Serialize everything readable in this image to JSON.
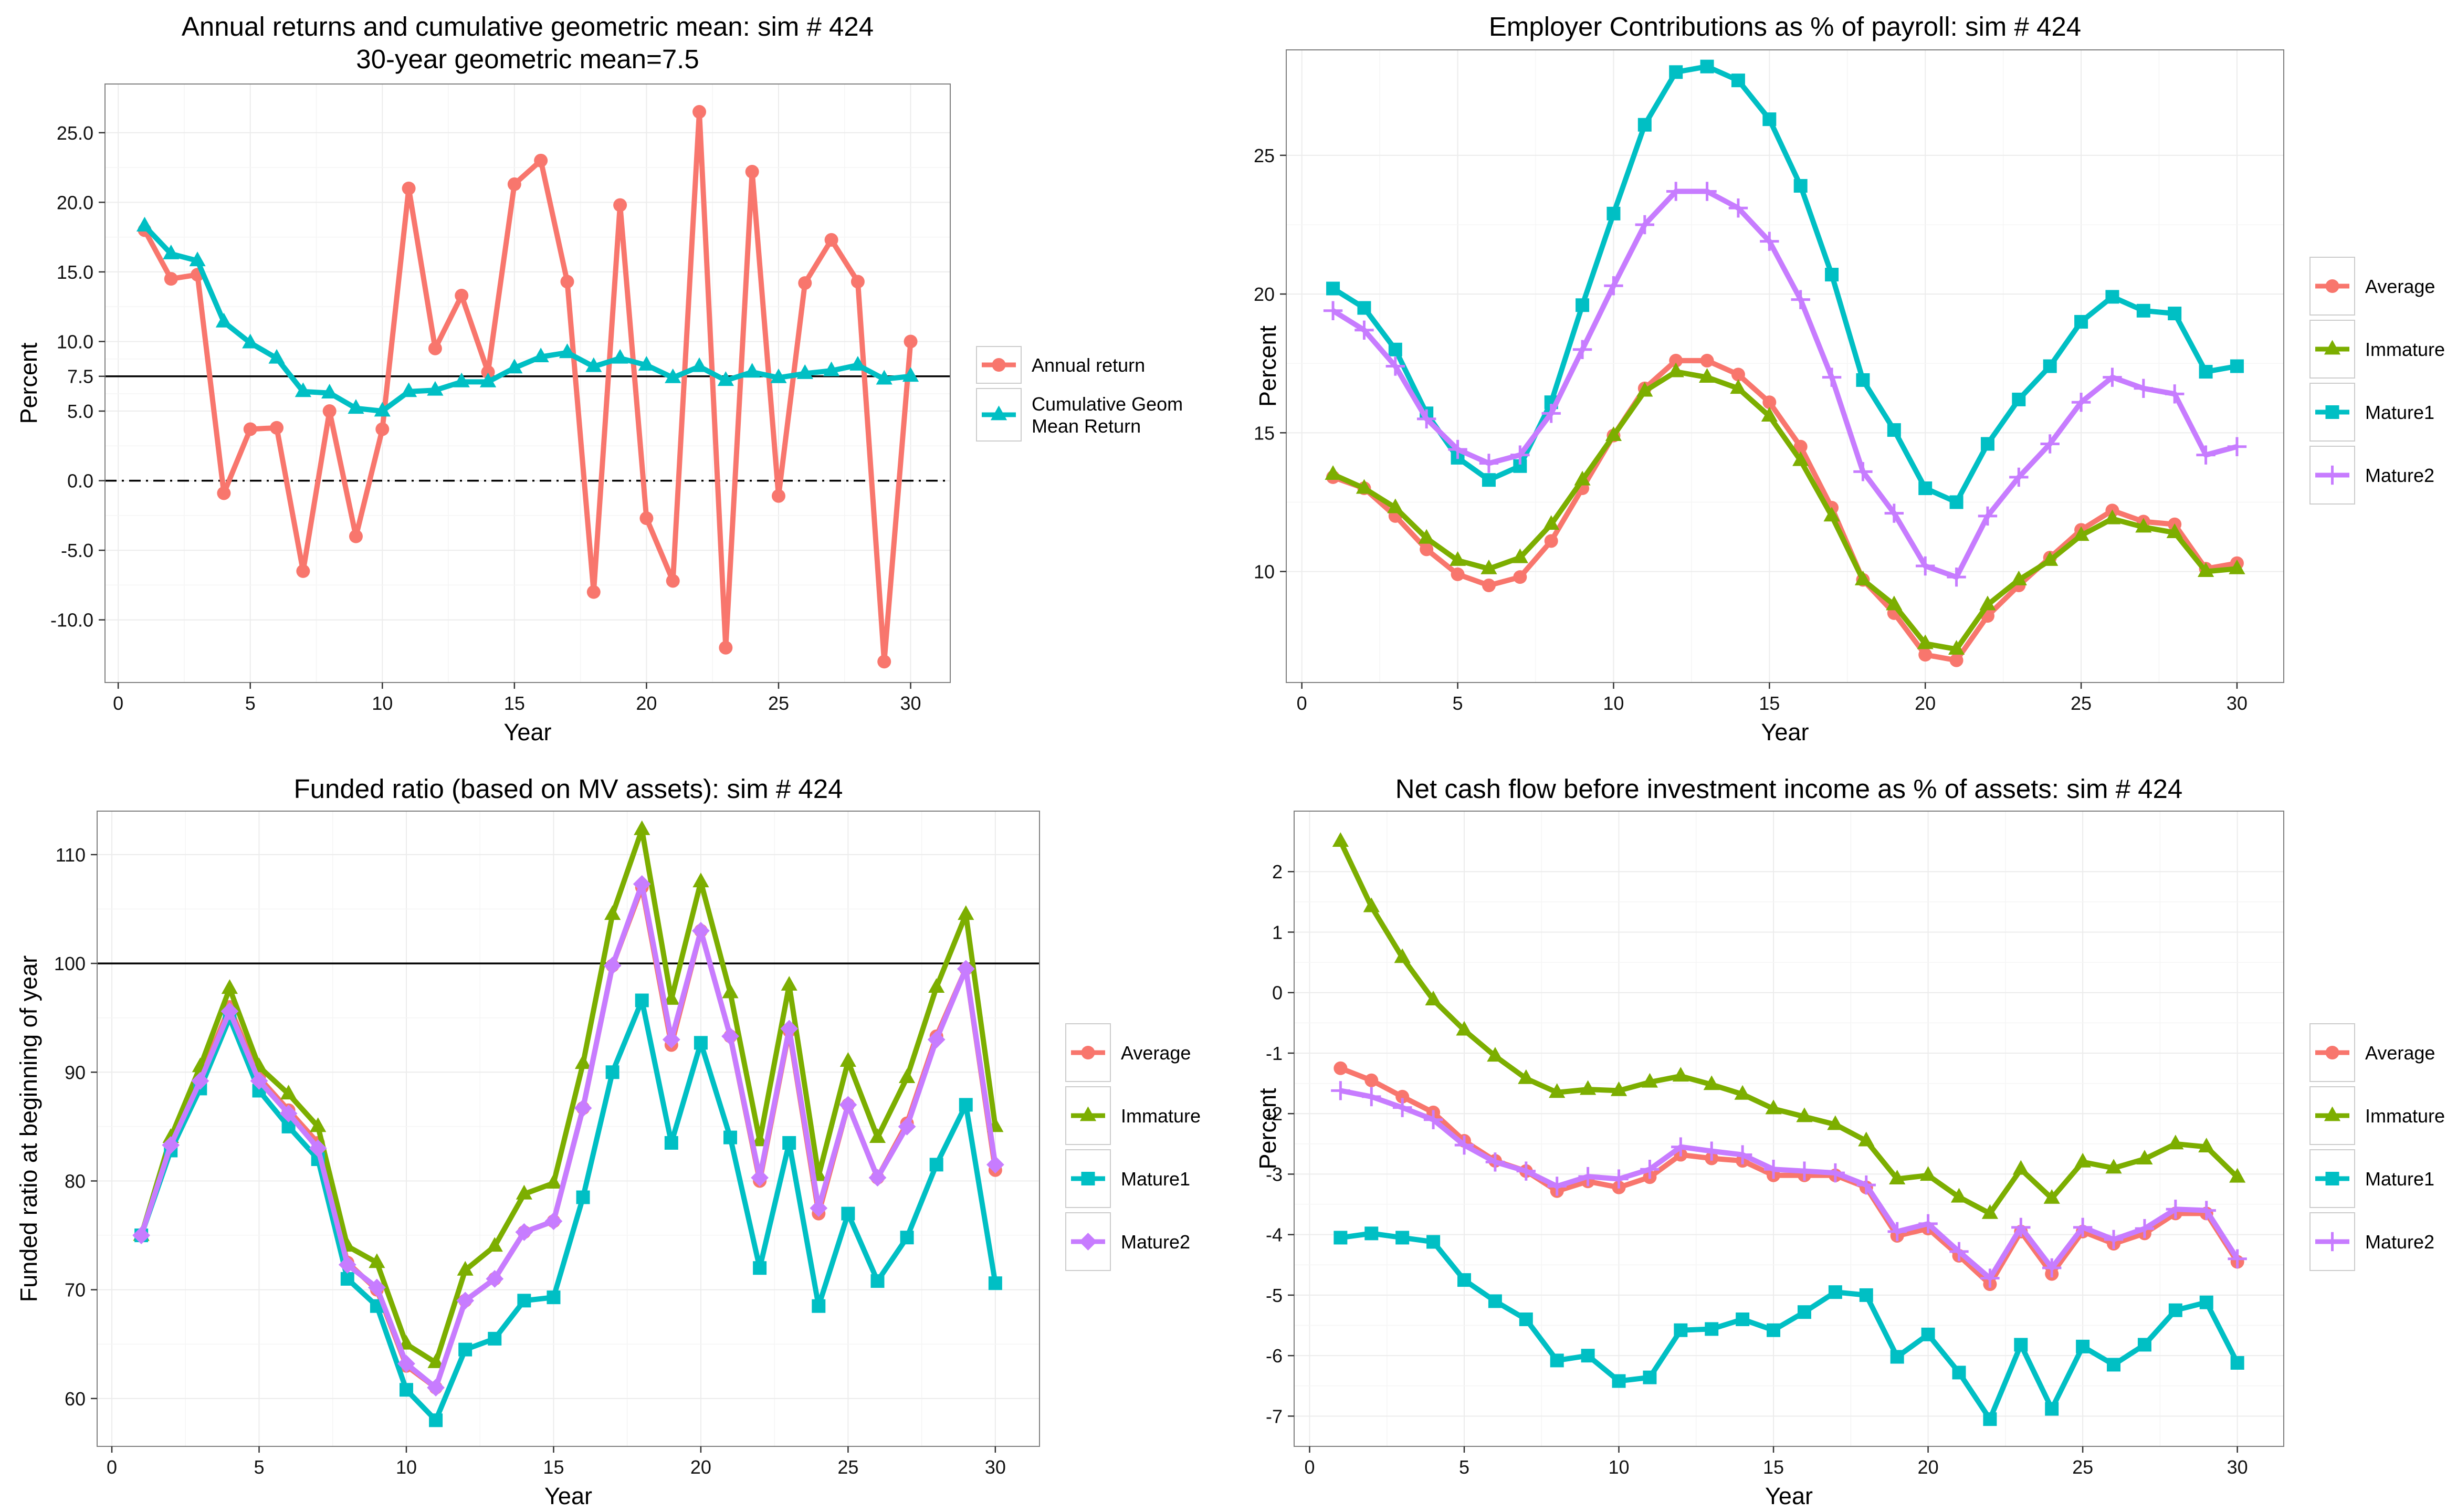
{
  "chart_data": [
    {
      "type": "line",
      "title": [
        "Annual returns and cumulative geometric mean: sim # 424",
        "30-year geometric mean=7.5"
      ],
      "xlabel": "Year",
      "ylabel": "Percent",
      "xlim": [
        -0.5,
        31.5
      ],
      "ylim": [
        -14.5,
        28.5
      ],
      "xticks": [
        0,
        5,
        10,
        15,
        20,
        25,
        30
      ],
      "yticks": [
        -10,
        -5,
        0,
        5,
        7.5,
        10,
        15,
        20,
        25
      ],
      "ytick_labels": [
        "-10.0",
        "-5.0",
        "0.0",
        "5.0",
        "7.5",
        "10.0",
        "15.0",
        "20.0",
        "25.0"
      ],
      "hlines": [
        {
          "y": 7.5,
          "style": "solid"
        },
        {
          "y": 0,
          "style": "dashdot"
        }
      ],
      "x": [
        1,
        2,
        3,
        4,
        5,
        6,
        7,
        8,
        9,
        10,
        11,
        12,
        13,
        14,
        15,
        16,
        17,
        18,
        19,
        20,
        21,
        22,
        23,
        24,
        25,
        26,
        27,
        28,
        29,
        30
      ],
      "series": [
        {
          "name": "Annual return",
          "color": "#F8766D",
          "marker": "circle",
          "values": [
            18.0,
            14.5,
            14.8,
            -0.9,
            3.7,
            3.8,
            -6.5,
            5.0,
            -4.0,
            3.7,
            21.0,
            9.5,
            13.3,
            7.8,
            21.3,
            23.0,
            14.3,
            -8.0,
            19.8,
            -2.7,
            -7.2,
            26.5,
            -12.0,
            22.2,
            -1.1,
            14.2,
            17.3,
            14.3,
            -13.0,
            10.0
          ]
        },
        {
          "name": "Cumulative Geom Mean Return",
          "color": "#00BFC4",
          "marker": "triangle",
          "values": [
            18.3,
            16.3,
            15.8,
            11.4,
            9.9,
            8.8,
            6.4,
            6.3,
            5.2,
            5.0,
            6.4,
            6.5,
            7.1,
            7.1,
            8.1,
            8.9,
            9.2,
            8.2,
            8.8,
            8.3,
            7.4,
            8.2,
            7.2,
            7.8,
            7.4,
            7.7,
            7.9,
            8.3,
            7.3,
            7.5
          ]
        }
      ],
      "legend": [
        "Annual return",
        "Cumulative Geom\nMean Return"
      ],
      "legend_position": "right"
    },
    {
      "type": "line",
      "title": [
        "Employer Contributions as % of payroll: sim # 424"
      ],
      "xlabel": "Year",
      "ylabel": "Percent",
      "xlim": [
        -0.5,
        31.5
      ],
      "ylim": [
        6.0,
        28.8
      ],
      "xticks": [
        0,
        5,
        10,
        15,
        20,
        25,
        30
      ],
      "yticks": [
        10,
        15,
        20,
        25
      ],
      "x": [
        1,
        2,
        3,
        4,
        5,
        6,
        7,
        8,
        9,
        10,
        11,
        12,
        13,
        14,
        15,
        16,
        17,
        18,
        19,
        20,
        21,
        22,
        23,
        24,
        25,
        26,
        27,
        28,
        29,
        30
      ],
      "series": [
        {
          "name": "Average",
          "color": "#F8766D",
          "marker": "circle",
          "values": [
            13.4,
            13.0,
            12.0,
            10.8,
            9.9,
            9.5,
            9.8,
            11.1,
            13.0,
            14.9,
            16.6,
            17.6,
            17.6,
            17.1,
            16.1,
            14.5,
            12.3,
            9.7,
            8.5,
            7.0,
            6.8,
            8.4,
            9.5,
            10.5,
            11.5,
            12.2,
            11.8,
            11.7,
            10.1,
            10.3
          ]
        },
        {
          "name": "Immature",
          "color": "#7CAE00",
          "marker": "triangle",
          "values": [
            13.5,
            13.0,
            12.3,
            11.2,
            10.4,
            10.1,
            10.5,
            11.7,
            13.3,
            14.9,
            16.5,
            17.2,
            17.0,
            16.6,
            15.6,
            14.0,
            12.0,
            9.7,
            8.8,
            7.4,
            7.2,
            8.8,
            9.7,
            10.4,
            11.3,
            11.9,
            11.6,
            11.4,
            10.0,
            10.1
          ]
        },
        {
          "name": "Mature1",
          "color": "#00BFC4",
          "marker": "square",
          "values": [
            20.2,
            19.5,
            18.0,
            15.7,
            14.1,
            13.3,
            13.8,
            16.1,
            19.6,
            22.9,
            26.1,
            28.0,
            28.2,
            27.7,
            26.3,
            23.9,
            20.7,
            16.9,
            15.1,
            13.0,
            12.5,
            14.6,
            16.2,
            17.4,
            19.0,
            19.9,
            19.4,
            19.3,
            17.2,
            17.4
          ]
        },
        {
          "name": "Mature2",
          "color": "#C77CFF",
          "marker": "plus",
          "values": [
            19.4,
            18.7,
            17.4,
            15.5,
            14.4,
            13.9,
            14.2,
            15.7,
            18.0,
            20.3,
            22.5,
            23.7,
            23.7,
            23.1,
            21.9,
            19.8,
            17.0,
            13.6,
            12.1,
            10.2,
            9.8,
            12.0,
            13.4,
            14.6,
            16.1,
            17.0,
            16.6,
            16.4,
            14.2,
            14.5
          ]
        }
      ],
      "legend": [
        "Average",
        "Immature",
        "Mature1",
        "Mature2"
      ],
      "legend_position": "right"
    },
    {
      "type": "line",
      "title": [
        "Funded ratio (based on MV assets): sim # 424"
      ],
      "xlabel": "Year",
      "ylabel": "Funded ratio at beginning of year",
      "xlim": [
        -0.5,
        31.5
      ],
      "ylim": [
        55.6,
        114.0
      ],
      "xticks": [
        0,
        5,
        10,
        15,
        20,
        25,
        30
      ],
      "yticks": [
        60,
        70,
        80,
        90,
        100,
        110
      ],
      "hlines": [
        {
          "y": 100,
          "style": "solid"
        }
      ],
      "x": [
        1,
        2,
        3,
        4,
        5,
        6,
        7,
        8,
        9,
        10,
        11,
        12,
        13,
        14,
        15,
        16,
        17,
        18,
        19,
        20,
        21,
        22,
        23,
        24,
        25,
        26,
        27,
        28,
        29,
        30
      ],
      "series": [
        {
          "name": "Average",
          "color": "#F8766D",
          "marker": "circle",
          "values": [
            75.0,
            83.5,
            89.5,
            96.0,
            89.5,
            86.5,
            83.5,
            72.5,
            70.0,
            63.0,
            61.0,
            69.0,
            71.0,
            75.3,
            76.3,
            86.7,
            99.8,
            107.0,
            92.5,
            103.0,
            93.3,
            80.0,
            93.8,
            77.0,
            87.0,
            80.3,
            85.3,
            93.3,
            99.5,
            81.0
          ]
        },
        {
          "name": "Immature",
          "color": "#7CAE00",
          "marker": "triangle",
          "values": [
            75.0,
            84.0,
            90.5,
            97.7,
            90.5,
            88.0,
            85.0,
            74.0,
            72.5,
            65.0,
            63.3,
            71.8,
            74.0,
            78.8,
            79.8,
            90.8,
            104.5,
            112.3,
            96.7,
            107.5,
            97.3,
            83.7,
            98.0,
            80.5,
            91.0,
            84.0,
            89.5,
            97.8,
            104.5,
            85.0
          ]
        },
        {
          "name": "Mature1",
          "color": "#00BFC4",
          "marker": "square",
          "values": [
            75.0,
            82.8,
            88.5,
            95.0,
            88.3,
            85.0,
            82.0,
            71.0,
            68.5,
            60.8,
            58.0,
            64.5,
            65.5,
            69.0,
            69.3,
            78.5,
            90.0,
            96.6,
            83.5,
            92.7,
            84.0,
            72.0,
            83.5,
            68.5,
            77.0,
            70.8,
            74.8,
            81.5,
            87.0,
            70.6
          ]
        },
        {
          "name": "Mature2",
          "color": "#C77CFF",
          "marker": "diamond",
          "values": [
            75.0,
            83.3,
            89.2,
            95.6,
            89.2,
            86.2,
            83.0,
            72.3,
            70.2,
            63.2,
            61.0,
            69.0,
            71.0,
            75.3,
            76.3,
            86.7,
            99.8,
            107.3,
            93.0,
            103.0,
            93.3,
            80.3,
            94.0,
            77.5,
            87.0,
            80.3,
            85.0,
            93.0,
            99.5,
            81.5
          ]
        }
      ],
      "legend": [
        "Average",
        "Immature",
        "Mature1",
        "Mature2"
      ],
      "legend_position": "right"
    },
    {
      "type": "line",
      "title": [
        "Net cash flow before investment income as % of assets: sim # 424"
      ],
      "xlabel": "Year",
      "ylabel": "Percent",
      "xlim": [
        -0.5,
        31.5
      ],
      "ylim": [
        -7.5,
        3.0
      ],
      "xticks": [
        0,
        5,
        10,
        15,
        20,
        25,
        30
      ],
      "yticks": [
        -7,
        -6,
        -5,
        -4,
        -3,
        -2,
        -1,
        0,
        1,
        2
      ],
      "x": [
        1,
        2,
        3,
        4,
        5,
        6,
        7,
        8,
        9,
        10,
        11,
        12,
        13,
        14,
        15,
        16,
        17,
        18,
        19,
        20,
        21,
        22,
        23,
        24,
        25,
        26,
        27,
        28,
        29,
        30
      ],
      "series": [
        {
          "name": "Average",
          "color": "#F8766D",
          "marker": "circle",
          "values": [
            -1.25,
            -1.45,
            -1.72,
            -1.98,
            -2.45,
            -2.78,
            -2.95,
            -3.28,
            -3.12,
            -3.22,
            -3.05,
            -2.68,
            -2.74,
            -2.78,
            -3.02,
            -3.02,
            -3.02,
            -3.22,
            -4.02,
            -3.9,
            -4.35,
            -4.82,
            -3.95,
            -4.65,
            -3.95,
            -4.15,
            -3.98,
            -3.65,
            -3.65,
            -4.45
          ]
        },
        {
          "name": "Immature",
          "color": "#7CAE00",
          "marker": "triangle",
          "values": [
            2.5,
            1.42,
            0.58,
            -0.12,
            -0.62,
            -1.05,
            -1.42,
            -1.65,
            -1.6,
            -1.62,
            -1.48,
            -1.38,
            -1.52,
            -1.68,
            -1.92,
            -2.05,
            -2.18,
            -2.45,
            -3.08,
            -3.02,
            -3.38,
            -3.65,
            -2.92,
            -3.4,
            -2.8,
            -2.9,
            -2.75,
            -2.5,
            -2.55,
            -3.05
          ]
        },
        {
          "name": "Mature1",
          "color": "#00BFC4",
          "marker": "square",
          "values": [
            -4.05,
            -3.98,
            -4.05,
            -4.12,
            -4.75,
            -5.1,
            -5.4,
            -6.08,
            -6.0,
            -6.42,
            -6.36,
            -5.58,
            -5.56,
            -5.4,
            -5.58,
            -5.28,
            -4.95,
            -5.0,
            -6.02,
            -5.65,
            -6.28,
            -7.05,
            -5.82,
            -6.88,
            -5.85,
            -6.15,
            -5.82,
            -5.25,
            -5.12,
            -6.12
          ]
        },
        {
          "name": "Mature2",
          "color": "#C77CFF",
          "marker": "plus",
          "values": [
            -1.62,
            -1.72,
            -1.9,
            -2.1,
            -2.52,
            -2.8,
            -2.95,
            -3.2,
            -3.04,
            -3.08,
            -2.92,
            -2.55,
            -2.62,
            -2.68,
            -2.92,
            -2.95,
            -2.98,
            -3.18,
            -3.95,
            -3.82,
            -4.28,
            -4.72,
            -3.88,
            -4.55,
            -3.88,
            -4.08,
            -3.9,
            -3.58,
            -3.6,
            -4.4
          ]
        }
      ],
      "legend": [
        "Average",
        "Immature",
        "Mature1",
        "Mature2"
      ],
      "legend_position": "right"
    }
  ]
}
